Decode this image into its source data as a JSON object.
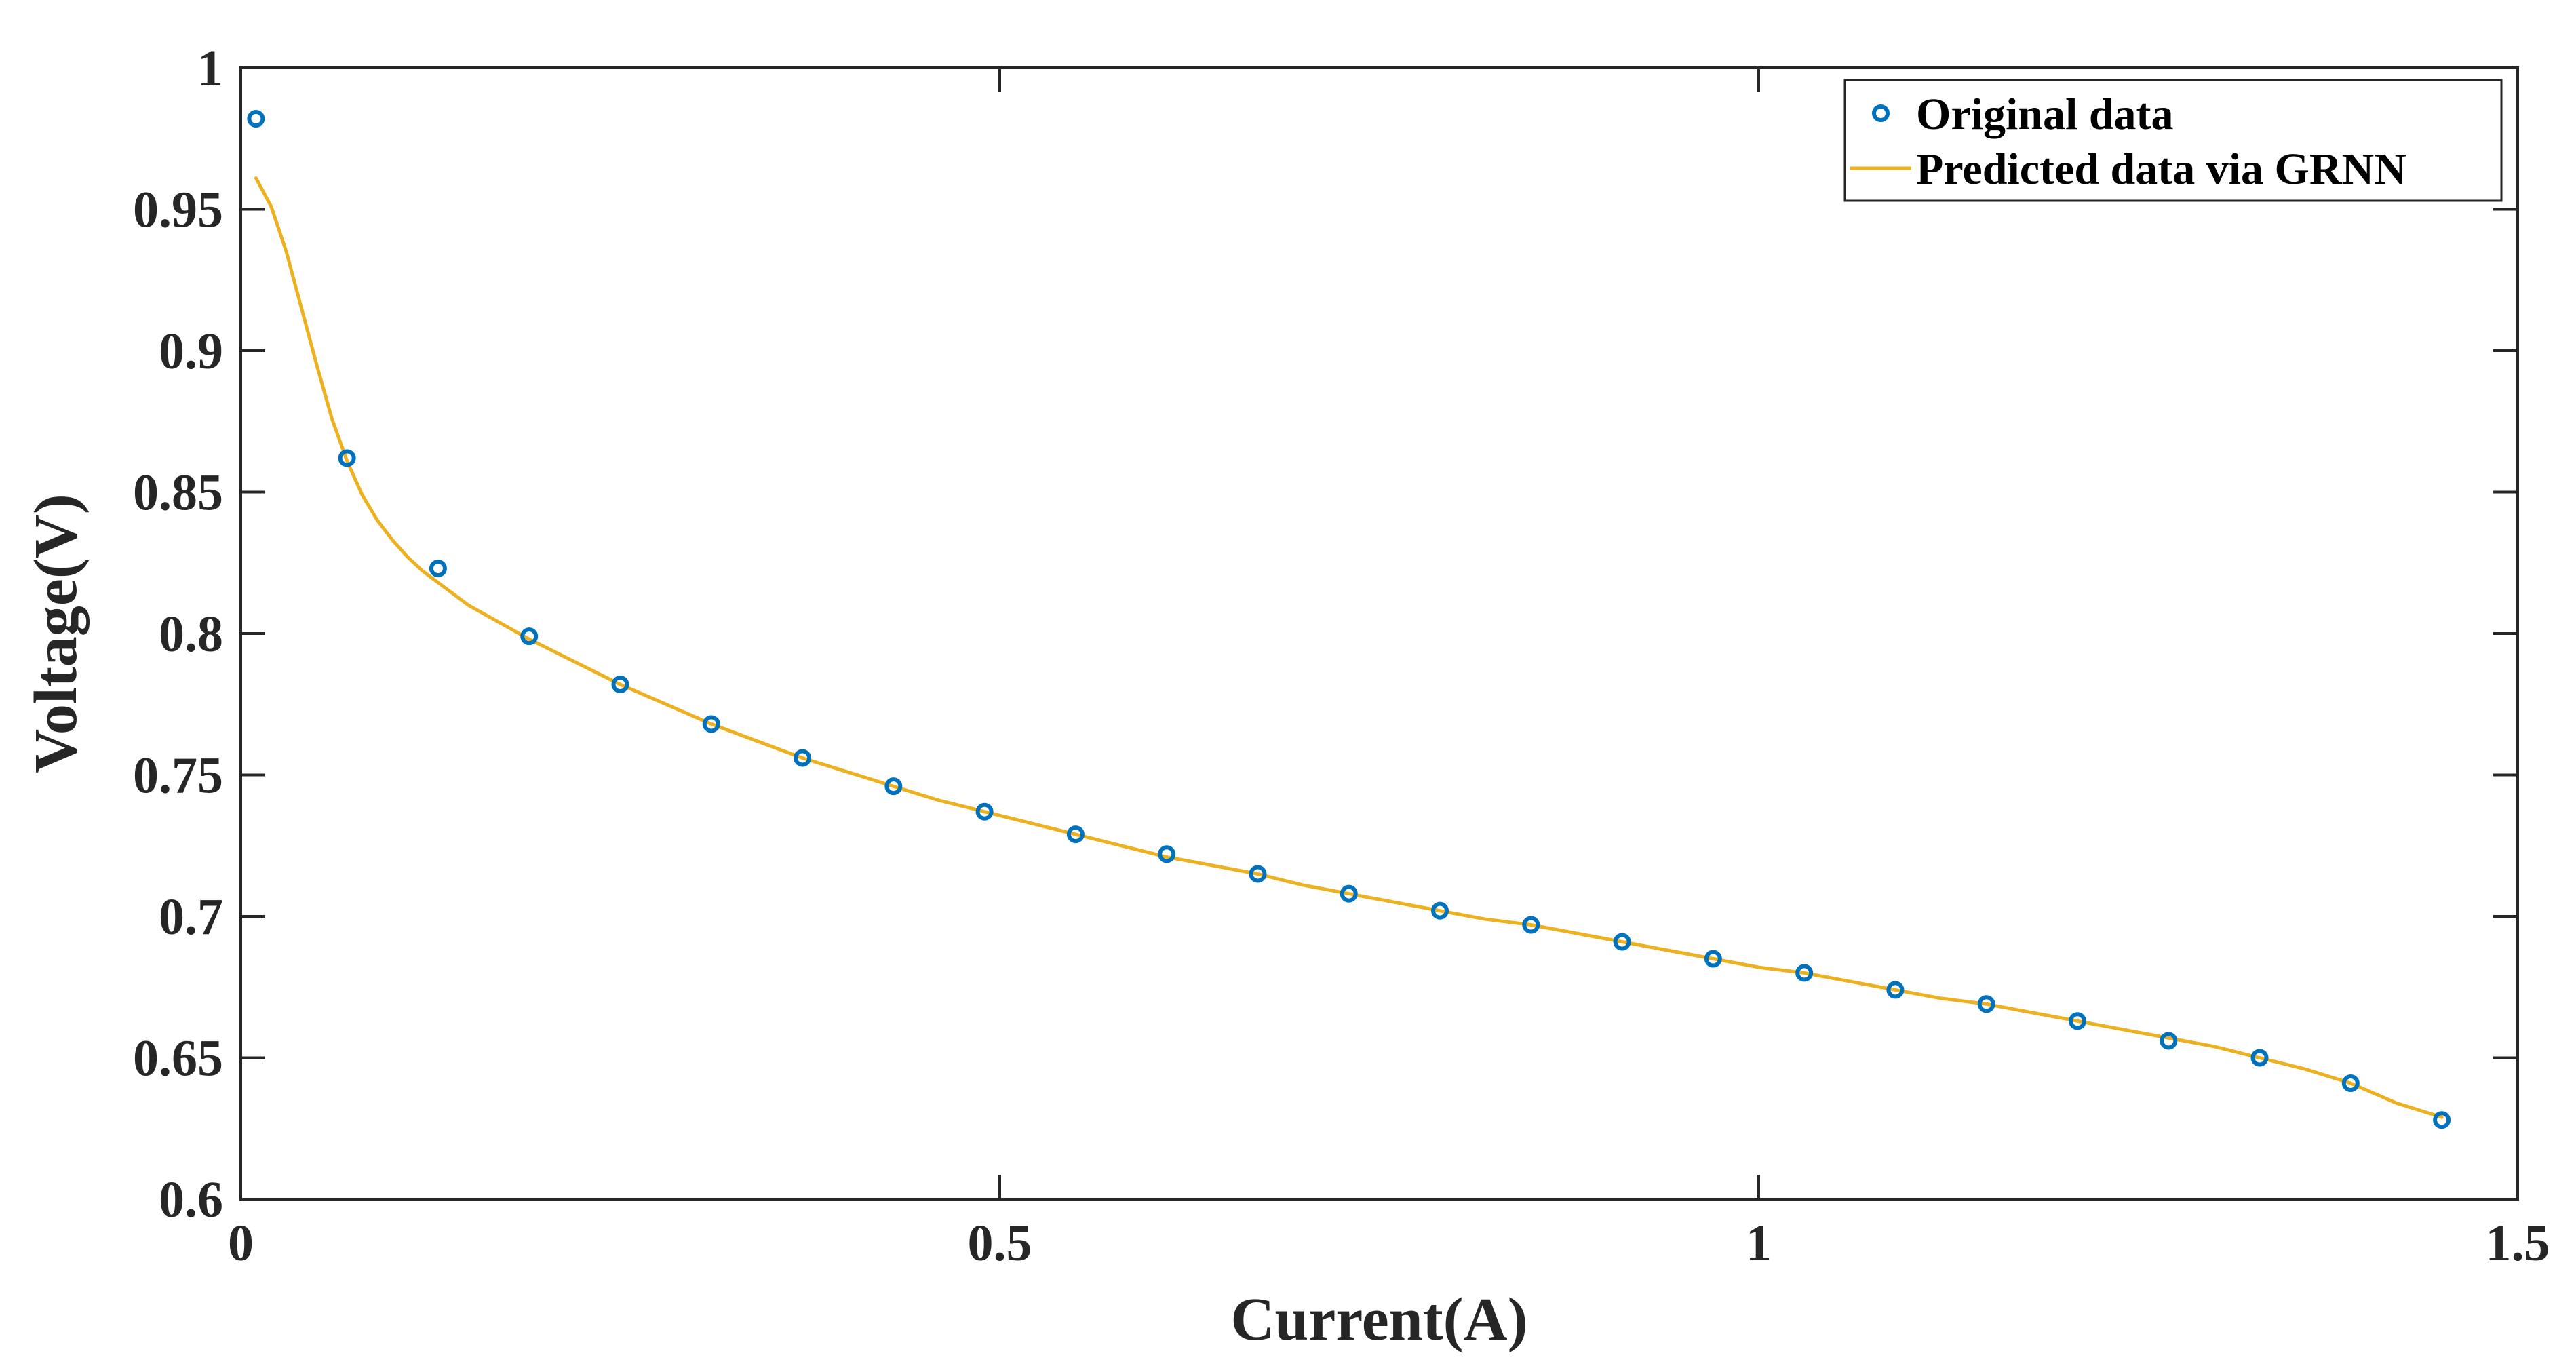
{
  "chart_data": {
    "type": "line",
    "title": "",
    "xlabel": "Current(A)",
    "ylabel": "Voltage(V)",
    "xlim": [
      0,
      1.5
    ],
    "ylim": [
      0.6,
      1.0
    ],
    "xticks": [
      0,
      0.5,
      1,
      1.5
    ],
    "xtick_labels": [
      "0",
      "0.5",
      "1",
      "1.5"
    ],
    "yticks": [
      0.6,
      0.65,
      0.7,
      0.75,
      0.8,
      0.85,
      0.9,
      0.95,
      1.0
    ],
    "ytick_labels": [
      "0.6",
      "0.65",
      "0.7",
      "0.75",
      "0.8",
      "0.85",
      "0.9",
      "0.95",
      "1"
    ],
    "grid": false,
    "legend_position": "top-right",
    "series": [
      {
        "name": "Original data",
        "kind": "scatter",
        "marker": "circle-open",
        "color": "#0072BD",
        "x": [
          0.01,
          0.07,
          0.13,
          0.19,
          0.25,
          0.31,
          0.37,
          0.43,
          0.49,
          0.55,
          0.61,
          0.67,
          0.73,
          0.79,
          0.85,
          0.91,
          0.97,
          1.03,
          1.09,
          1.15,
          1.21,
          1.27,
          1.33,
          1.39,
          1.45
        ],
        "y": [
          0.982,
          0.862,
          0.823,
          0.799,
          0.782,
          0.768,
          0.756,
          0.746,
          0.737,
          0.729,
          0.722,
          0.715,
          0.708,
          0.702,
          0.697,
          0.691,
          0.685,
          0.68,
          0.674,
          0.669,
          0.663,
          0.656,
          0.65,
          0.641,
          0.628
        ]
      },
      {
        "name": "Predicted data via GRNN",
        "kind": "line",
        "color": "#EDB120",
        "x": [
          0.01,
          0.02,
          0.03,
          0.04,
          0.05,
          0.06,
          0.07,
          0.08,
          0.09,
          0.1,
          0.11,
          0.12,
          0.13,
          0.15,
          0.17,
          0.19,
          0.22,
          0.25,
          0.28,
          0.31,
          0.34,
          0.37,
          0.4,
          0.43,
          0.46,
          0.49,
          0.52,
          0.55,
          0.58,
          0.61,
          0.64,
          0.67,
          0.7,
          0.73,
          0.76,
          0.79,
          0.82,
          0.85,
          0.88,
          0.91,
          0.94,
          0.97,
          1.0,
          1.03,
          1.06,
          1.09,
          1.12,
          1.15,
          1.18,
          1.21,
          1.24,
          1.27,
          1.3,
          1.33,
          1.36,
          1.39,
          1.42,
          1.45
        ],
        "y": [
          0.961,
          0.951,
          0.935,
          0.915,
          0.895,
          0.876,
          0.861,
          0.849,
          0.84,
          0.833,
          0.827,
          0.822,
          0.818,
          0.81,
          0.804,
          0.798,
          0.79,
          0.782,
          0.775,
          0.768,
          0.762,
          0.756,
          0.751,
          0.746,
          0.741,
          0.737,
          0.733,
          0.729,
          0.725,
          0.721,
          0.718,
          0.715,
          0.711,
          0.708,
          0.705,
          0.702,
          0.699,
          0.697,
          0.694,
          0.691,
          0.688,
          0.685,
          0.682,
          0.68,
          0.677,
          0.674,
          0.671,
          0.669,
          0.666,
          0.663,
          0.66,
          0.657,
          0.654,
          0.65,
          0.646,
          0.641,
          0.634,
          0.629
        ]
      }
    ]
  }
}
